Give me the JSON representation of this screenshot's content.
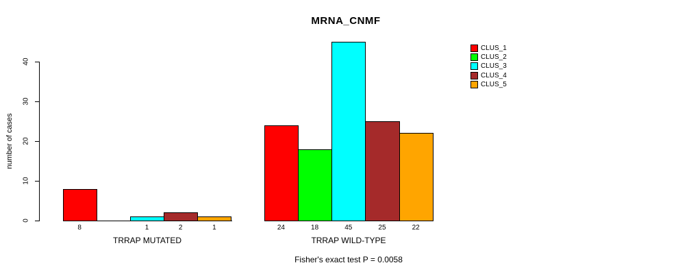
{
  "chart_data": {
    "type": "bar",
    "title": "MRNA_CNMF",
    "ylabel": "number of cases",
    "xlabel": "",
    "ylim": [
      0,
      45
    ],
    "yticks": [
      0,
      10,
      20,
      30,
      40
    ],
    "grid": false,
    "legend_position": "right",
    "series": [
      {
        "name": "CLUS_1",
        "color": "#FF0000"
      },
      {
        "name": "CLUS_2",
        "color": "#00FF00"
      },
      {
        "name": "CLUS_3",
        "color": "#00FFFF"
      },
      {
        "name": "CLUS_4",
        "color": "#A52A2A"
      },
      {
        "name": "CLUS_5",
        "color": "#FFA500"
      }
    ],
    "groups": [
      {
        "label": "TRRAP MUTATED",
        "values": [
          8,
          0,
          1,
          2,
          1
        ]
      },
      {
        "label": "TRRAP WILD-TYPE",
        "values": [
          24,
          18,
          45,
          25,
          22
        ]
      }
    ],
    "bar_value_labels": "values shown under each nonzero bar",
    "annotation": "Fisher's exact test P = 0.0058"
  }
}
